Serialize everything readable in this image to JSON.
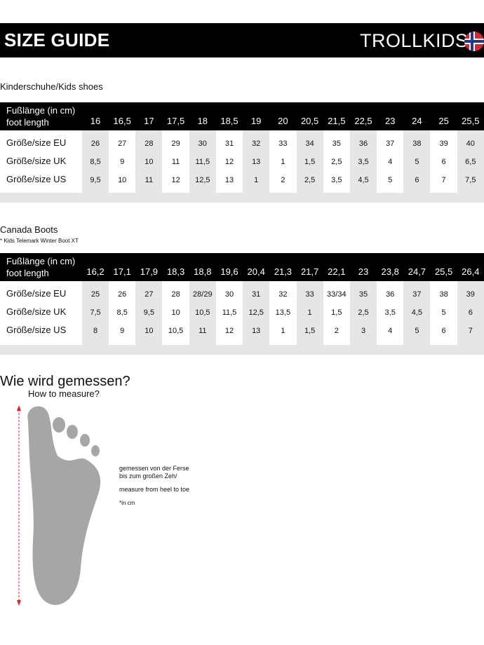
{
  "header": {
    "title": "SIZE GUIDE",
    "logo": "TROLLKIDS",
    "flag": "norway-flag"
  },
  "colors": {
    "header_bg": "#000000",
    "stripe": "#e6e6e6",
    "arrow": "#d9262c",
    "foot": "#a6a6a6"
  },
  "table1": {
    "section_title": "Kinderschuhe/Kids shoes",
    "header_label_1": "Fußlänge (in cm)",
    "header_label_2": "foot length",
    "foot_length": [
      "16",
      "16,5",
      "17",
      "17,5",
      "18",
      "18,5",
      "19",
      "20",
      "20,5",
      "21,5",
      "22,5",
      "23",
      "24",
      "25",
      "25,5"
    ],
    "rows": [
      {
        "label": "Größe/size EU",
        "values": [
          "26",
          "27",
          "28",
          "29",
          "30",
          "31",
          "32",
          "33",
          "34",
          "35",
          "36",
          "37",
          "38",
          "39",
          "40"
        ]
      },
      {
        "label": "Größe/size UK",
        "values": [
          "8,5",
          "9",
          "10",
          "11",
          "11,5",
          "12",
          "13",
          "1",
          "1,5",
          "2,5",
          "3,5",
          "4",
          "5",
          "6",
          "6,5"
        ]
      },
      {
        "label": "Größe/size US",
        "values": [
          "9,5",
          "10",
          "11",
          "12",
          "12,5",
          "13",
          "1",
          "2",
          "2,5",
          "3,5",
          "4,5",
          "5",
          "6",
          "7",
          "7,5"
        ]
      }
    ]
  },
  "table2": {
    "section_title": "Canada Boots",
    "subtitle": "* Kids Telemark Winter Boot XT",
    "header_label_1": "Fußlänge (in cm)",
    "header_label_2": "foot length",
    "foot_length": [
      "16,2",
      "17,1",
      "17,9",
      "18,3",
      "18,8",
      "19,6",
      "20,4",
      "21,3",
      "21,7",
      "22,1",
      "23",
      "23,8",
      "24,7",
      "25,5",
      "26,4"
    ],
    "rows": [
      {
        "label": "Größe/size EU",
        "values": [
          "25",
          "26",
          "27",
          "28",
          "28/29",
          "30",
          "31",
          "32",
          "33",
          "33/34",
          "35",
          "36",
          "37",
          "38",
          "39"
        ]
      },
      {
        "label": "Größe/size UK",
        "values": [
          "7,5",
          "8,5",
          "9,5",
          "10",
          "10,5",
          "11,5",
          "12,5",
          "13,5",
          "1",
          "1,5",
          "2,5",
          "3,5",
          "4,5",
          "5",
          "6"
        ]
      },
      {
        "label": "Größe/size US",
        "values": [
          "8",
          "9",
          "10",
          "10,5",
          "11",
          "12",
          "13",
          "1",
          "1,5",
          "2",
          "3",
          "4",
          "5",
          "6",
          "7"
        ]
      }
    ]
  },
  "measure": {
    "title": "Wie wird gemessen?",
    "subtitle": "How to measure?",
    "line1": "gemessen von der Ferse",
    "line2": "bis zum großen Zeh/",
    "line3": "measure from heel to toe",
    "line4": "*in cm"
  }
}
